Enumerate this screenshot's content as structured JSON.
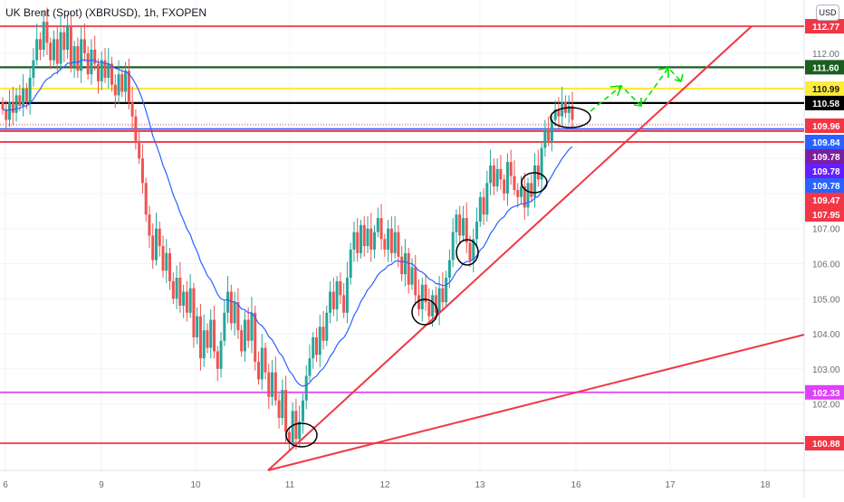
{
  "header": {
    "title": "UK Brent (Spot) (XBRUSD), 1h, FXOPEN",
    "currency": "USD"
  },
  "chart_data": {
    "type": "candlestick",
    "ylim": [
      100.5,
      113.1
    ],
    "y_ticks": [
      "112.00",
      "111.00",
      "110.00",
      "109.00",
      "108.00",
      "107.00",
      "106.00",
      "105.00",
      "104.00",
      "103.00",
      "102.00"
    ],
    "x_ticks": [
      "6",
      "9",
      "10",
      "11",
      "12",
      "13",
      "16",
      "17",
      "18"
    ],
    "horizontal_levels": [
      {
        "value": 112.77,
        "label": "112.77",
        "color": "#f23645"
      },
      {
        "value": 111.6,
        "label": "111.60",
        "color": "#1b5e20"
      },
      {
        "value": 110.99,
        "label": "110.99",
        "color": "#ffeb3b"
      },
      {
        "value": 110.58,
        "label": "110.58",
        "color": "#000000"
      },
      {
        "value": 109.84,
        "label": "109.84",
        "color": "#2962ff"
      },
      {
        "value": 109.78,
        "label": "109.78",
        "color": "#f23645"
      },
      {
        "value": 109.47,
        "label": "109.47",
        "color": "#f23645"
      },
      {
        "value": 102.33,
        "label": "102.33",
        "color": "#e040fb"
      },
      {
        "value": 100.88,
        "label": "100.88",
        "color": "#f23645"
      }
    ],
    "price_tags": [
      {
        "label": "109.96",
        "color": "#f23645"
      },
      {
        "label": "109.84",
        "color": "#2962ff"
      },
      {
        "label": "109.78",
        "color": "#7b1fa2"
      },
      {
        "label": "109.78",
        "color": "#651fff"
      },
      {
        "label": "109.78",
        "color": "#2962ff"
      },
      {
        "label": "109.47",
        "color": "#f23645"
      },
      {
        "label": "107.95",
        "color": "#f23645"
      }
    ],
    "colors": {
      "up": "#26a69a",
      "down": "#ef5350",
      "ema": "#2962ff",
      "trend": "#f23645",
      "projection": "#00e600"
    },
    "closes": [
      110.4,
      110.1,
      110.6,
      110.3,
      110.8,
      110.5,
      111.0,
      110.6,
      111.3,
      111.8,
      112.4,
      112.1,
      112.9,
      112.3,
      111.8,
      112.4,
      111.7,
      112.6,
      112.1,
      112.8,
      111.6,
      112.2,
      111.5,
      112.4,
      112.0,
      111.4,
      112.1,
      111.7,
      111.2,
      111.8,
      111.3,
      111.7,
      111.1,
      110.8,
      111.4,
      110.9,
      111.5,
      110.6,
      110.2,
      109.5,
      109.0,
      108.3,
      107.4,
      106.8,
      106.1,
      107.0,
      106.5,
      105.8,
      106.3,
      105.5,
      105.0,
      105.6,
      104.8,
      105.2,
      104.6,
      105.3,
      103.9,
      104.5,
      103.3,
      104.1,
      103.6,
      104.4,
      103.5,
      103.0,
      103.8,
      104.6,
      105.2,
      104.3,
      104.9,
      104.1,
      103.5,
      104.4,
      103.8,
      104.6,
      103.2,
      102.7,
      103.6,
      102.9,
      102.2,
      102.9,
      102.1,
      101.6,
      102.4,
      101.2,
      100.9,
      101.8,
      101.0,
      101.5,
      102.1,
      102.8,
      103.3,
      103.9,
      103.4,
      104.2,
      103.8,
      104.6,
      105.2,
      104.7,
      105.5,
      105.1,
      104.6,
      105.6,
      106.4,
      106.9,
      106.3,
      107.1,
      106.5,
      107.0,
      106.4,
      106.9,
      107.3,
      106.7,
      106.4,
      107.0,
      106.3,
      106.9,
      106.2,
      105.7,
      106.3,
      105.4,
      105.9,
      105.1,
      104.7,
      105.4,
      104.9,
      104.5,
      105.1,
      104.6,
      105.3,
      104.9,
      105.6,
      106.1,
      106.9,
      107.4,
      106.8,
      107.3,
      106.6,
      106.1,
      106.7,
      107.2,
      107.9,
      107.4,
      108.3,
      108.8,
      108.2,
      108.7,
      108.4,
      108.0,
      108.9,
      108.5,
      108.1,
      107.9,
      108.2,
      107.6,
      108.3,
      107.9,
      108.8,
      108.4,
      109.3,
      109.8,
      109.5,
      110.1,
      110.4,
      110.2,
      110.6,
      110.3,
      110.5,
      110.1
    ]
  },
  "annotations": {
    "circles": 7,
    "trendlines": 2,
    "projection_arrows": 1
  }
}
